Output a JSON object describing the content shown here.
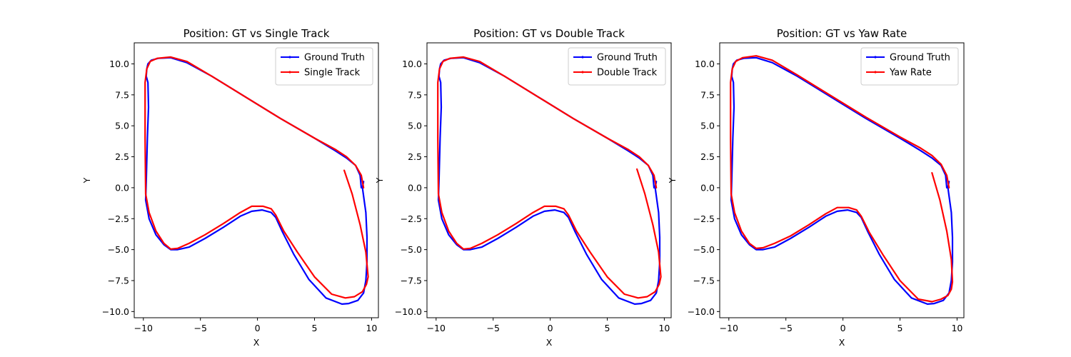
{
  "chart_data": [
    {
      "type": "line",
      "title": "Position: GT vs Single Track",
      "xlabel": "X",
      "ylabel": "Y",
      "xlim": [
        -10.8,
        10.6
      ],
      "ylim": [
        -10.5,
        11.7
      ],
      "xticks": [
        -10,
        -5,
        0,
        5,
        10
      ],
      "xtick_labels": [
        "−10",
        "−5",
        "0",
        "5",
        "10"
      ],
      "yticks": [
        -10.0,
        -7.5,
        -5.0,
        -2.5,
        0.0,
        2.5,
        5.0,
        7.5,
        10.0
      ],
      "ytick_labels": [
        "−10.0",
        "−7.5",
        "−5.0",
        "−2.5",
        "0.0",
        "2.5",
        "5.0",
        "7.5",
        "10.0"
      ],
      "legend": "top-right",
      "grid": false,
      "series": [
        {
          "name": "Ground Truth",
          "color": "#0000ff",
          "x": [
            9.3,
            9.2,
            9.5,
            9.6,
            9.6,
            9.5,
            9.3,
            8.8,
            8.0,
            7.4,
            6.0,
            4.5,
            3.2,
            2.2,
            1.6,
            1.2,
            0.4,
            -0.5,
            -1.5,
            -3.0,
            -4.6,
            -6.0,
            -7.0,
            -7.6,
            -8.2,
            -8.9,
            -9.5,
            -9.8,
            -9.75,
            -9.65,
            -9.55,
            -9.6,
            -9.75,
            -9.7,
            -9.6,
            -9.3,
            -8.7,
            -7.6,
            -6.2,
            -4.0,
            -1.0,
            2.0,
            5.0,
            6.8,
            7.8,
            8.6,
            9.0,
            9.1
          ],
          "y": [
            0.5,
            0.0,
            -2.0,
            -4.0,
            -6.0,
            -7.5,
            -8.5,
            -9.1,
            -9.35,
            -9.4,
            -8.9,
            -7.4,
            -5.4,
            -3.6,
            -2.4,
            -2.0,
            -1.8,
            -1.9,
            -2.3,
            -3.2,
            -4.1,
            -4.8,
            -5.0,
            -5.0,
            -4.6,
            -3.8,
            -2.5,
            -1.0,
            0.5,
            4.0,
            6.5,
            8.5,
            9.0,
            9.6,
            10.0,
            10.3,
            10.45,
            10.5,
            10.1,
            9.0,
            7.3,
            5.6,
            4.0,
            3.0,
            2.4,
            1.8,
            1.0,
            0.0
          ]
        },
        {
          "name": "Single Track",
          "color": "#ff0000",
          "x": [
            7.6,
            8.3,
            9.0,
            9.5,
            9.7,
            9.55,
            9.2,
            8.5,
            7.7,
            6.5,
            5.0,
            3.5,
            2.3,
            1.6,
            1.2,
            0.5,
            -0.5,
            -1.5,
            -3.0,
            -4.6,
            -6.0,
            -7.0,
            -7.6,
            -8.2,
            -8.9,
            -9.5,
            -9.8,
            -9.85,
            -9.85,
            -9.7,
            -9.4,
            -8.8,
            -7.6,
            -6.2,
            -4.0,
            -1.0,
            2.0,
            5.0,
            6.8,
            7.8,
            8.6,
            9.1,
            9.3
          ],
          "y": [
            1.4,
            -0.5,
            -3.0,
            -5.2,
            -7.2,
            -7.8,
            -8.4,
            -8.8,
            -8.9,
            -8.6,
            -7.2,
            -5.2,
            -3.5,
            -2.2,
            -1.7,
            -1.5,
            -1.5,
            -2.0,
            -2.9,
            -3.8,
            -4.5,
            -4.9,
            -4.95,
            -4.5,
            -3.5,
            -2.0,
            -0.5,
            4.0,
            8.5,
            9.6,
            10.2,
            10.45,
            10.55,
            10.2,
            9.0,
            7.3,
            5.6,
            4.0,
            3.1,
            2.5,
            1.8,
            1.0,
            0.0
          ]
        }
      ]
    },
    {
      "type": "line",
      "title": "Position: GT vs Double Track",
      "xlabel": "X",
      "ylabel": "Y",
      "xlim": [
        -10.8,
        10.6
      ],
      "ylim": [
        -10.5,
        11.7
      ],
      "xticks": [
        -10,
        -5,
        0,
        5,
        10
      ],
      "xtick_labels": [
        "−10",
        "−5",
        "0",
        "5",
        "10"
      ],
      "yticks": [
        -10.0,
        -7.5,
        -5.0,
        -2.5,
        0.0,
        2.5,
        5.0,
        7.5,
        10.0
      ],
      "ytick_labels": [
        "−10.0",
        "−7.5",
        "−5.0",
        "−2.5",
        "0.0",
        "2.5",
        "5.0",
        "7.5",
        "10.0"
      ],
      "legend": "top-right",
      "grid": false,
      "series": [
        {
          "name": "Ground Truth",
          "color": "#0000ff",
          "x": [
            9.3,
            9.2,
            9.5,
            9.6,
            9.6,
            9.5,
            9.3,
            8.8,
            8.0,
            7.4,
            6.0,
            4.5,
            3.2,
            2.2,
            1.6,
            1.2,
            0.4,
            -0.5,
            -1.5,
            -3.0,
            -4.6,
            -6.0,
            -7.0,
            -7.6,
            -8.2,
            -8.9,
            -9.5,
            -9.8,
            -9.75,
            -9.65,
            -9.55,
            -9.6,
            -9.75,
            -9.7,
            -9.6,
            -9.3,
            -8.7,
            -7.6,
            -6.2,
            -4.0,
            -1.0,
            2.0,
            5.0,
            6.8,
            7.8,
            8.6,
            9.0,
            9.1
          ],
          "y": [
            0.5,
            0.0,
            -2.0,
            -4.0,
            -6.0,
            -7.5,
            -8.5,
            -9.1,
            -9.35,
            -9.4,
            -8.9,
            -7.4,
            -5.4,
            -3.6,
            -2.4,
            -2.0,
            -1.8,
            -1.9,
            -2.3,
            -3.2,
            -4.1,
            -4.8,
            -5.0,
            -5.0,
            -4.6,
            -3.8,
            -2.5,
            -1.0,
            0.5,
            4.0,
            6.5,
            8.5,
            9.0,
            9.6,
            10.0,
            10.3,
            10.45,
            10.5,
            10.1,
            9.0,
            7.3,
            5.6,
            4.0,
            3.0,
            2.4,
            1.8,
            1.0,
            0.0
          ]
        },
        {
          "name": "Double Track",
          "color": "#ff0000",
          "x": [
            7.6,
            8.3,
            9.0,
            9.5,
            9.7,
            9.55,
            9.2,
            8.5,
            7.7,
            6.5,
            5.0,
            3.5,
            2.3,
            1.6,
            1.2,
            0.5,
            -0.5,
            -1.5,
            -3.0,
            -4.6,
            -6.0,
            -7.0,
            -7.6,
            -8.2,
            -8.9,
            -9.5,
            -9.8,
            -9.85,
            -9.85,
            -9.7,
            -9.4,
            -8.8,
            -7.6,
            -6.2,
            -4.0,
            -1.0,
            2.0,
            5.0,
            6.8,
            7.8,
            8.6,
            9.1,
            9.3
          ],
          "y": [
            1.5,
            -0.5,
            -3.0,
            -5.2,
            -7.2,
            -7.8,
            -8.4,
            -8.8,
            -8.9,
            -8.6,
            -7.2,
            -5.2,
            -3.5,
            -2.2,
            -1.7,
            -1.5,
            -1.5,
            -2.0,
            -2.9,
            -3.8,
            -4.5,
            -4.9,
            -4.95,
            -4.5,
            -3.5,
            -2.0,
            -0.5,
            4.0,
            8.5,
            9.6,
            10.2,
            10.45,
            10.55,
            10.2,
            9.0,
            7.3,
            5.6,
            4.0,
            3.1,
            2.5,
            1.8,
            1.0,
            0.0
          ]
        }
      ]
    },
    {
      "type": "line",
      "title": "Position: GT vs Yaw Rate",
      "xlabel": "X",
      "ylabel": "Y",
      "xlim": [
        -10.8,
        10.6
      ],
      "ylim": [
        -10.5,
        11.7
      ],
      "xticks": [
        -10,
        -5,
        0,
        5,
        10
      ],
      "xtick_labels": [
        "−10",
        "−5",
        "0",
        "5",
        "10"
      ],
      "yticks": [
        -10.0,
        -7.5,
        -5.0,
        -2.5,
        0.0,
        2.5,
        5.0,
        7.5,
        10.0
      ],
      "ytick_labels": [
        "−10.0",
        "−7.5",
        "−5.0",
        "−2.5",
        "0.0",
        "2.5",
        "5.0",
        "7.5",
        "10.0"
      ],
      "legend": "top-right",
      "grid": false,
      "series": [
        {
          "name": "Ground Truth",
          "color": "#0000ff",
          "x": [
            9.3,
            9.2,
            9.5,
            9.6,
            9.6,
            9.5,
            9.3,
            8.8,
            8.0,
            7.4,
            6.0,
            4.5,
            3.2,
            2.2,
            1.6,
            1.2,
            0.4,
            -0.5,
            -1.5,
            -3.0,
            -4.6,
            -6.0,
            -7.0,
            -7.6,
            -8.2,
            -8.9,
            -9.5,
            -9.8,
            -9.75,
            -9.65,
            -9.55,
            -9.6,
            -9.75,
            -9.7,
            -9.6,
            -9.3,
            -8.7,
            -7.6,
            -6.2,
            -4.0,
            -1.0,
            2.0,
            5.0,
            6.8,
            7.8,
            8.6,
            9.0,
            9.1
          ],
          "y": [
            0.5,
            0.0,
            -2.0,
            -4.0,
            -6.0,
            -7.5,
            -8.5,
            -9.1,
            -9.35,
            -9.4,
            -8.9,
            -7.4,
            -5.4,
            -3.6,
            -2.4,
            -2.0,
            -1.8,
            -1.9,
            -2.3,
            -3.2,
            -4.1,
            -4.8,
            -5.0,
            -5.0,
            -4.6,
            -3.8,
            -2.5,
            -1.0,
            0.5,
            4.0,
            6.5,
            8.5,
            9.0,
            9.6,
            10.0,
            10.3,
            10.45,
            10.5,
            10.1,
            9.0,
            7.3,
            5.6,
            4.0,
            3.0,
            2.4,
            1.8,
            1.0,
            0.0
          ]
        },
        {
          "name": "Yaw Rate",
          "color": "#ff0000",
          "x": [
            7.8,
            8.5,
            9.1,
            9.5,
            9.6,
            9.5,
            9.2,
            8.6,
            7.8,
            6.6,
            5.0,
            3.5,
            2.3,
            1.6,
            1.2,
            0.5,
            -0.5,
            -1.5,
            -3.0,
            -4.6,
            -6.0,
            -7.0,
            -7.6,
            -8.2,
            -8.9,
            -9.5,
            -9.8,
            -9.85,
            -9.85,
            -9.7,
            -9.4,
            -8.8,
            -7.6,
            -6.2,
            -4.0,
            -1.0,
            2.0,
            5.0,
            6.8,
            7.8,
            8.6,
            9.1,
            9.3
          ],
          "y": [
            1.2,
            -1.0,
            -3.5,
            -5.8,
            -7.6,
            -8.2,
            -8.7,
            -9.0,
            -9.2,
            -9.0,
            -7.5,
            -5.4,
            -3.6,
            -2.3,
            -1.8,
            -1.6,
            -1.6,
            -2.1,
            -3.0,
            -3.9,
            -4.5,
            -4.85,
            -4.9,
            -4.5,
            -3.5,
            -2.0,
            -0.5,
            4.0,
            8.5,
            9.6,
            10.2,
            10.5,
            10.65,
            10.3,
            9.1,
            7.4,
            5.7,
            4.1,
            3.2,
            2.6,
            1.9,
            1.0,
            0.0
          ]
        }
      ]
    }
  ]
}
